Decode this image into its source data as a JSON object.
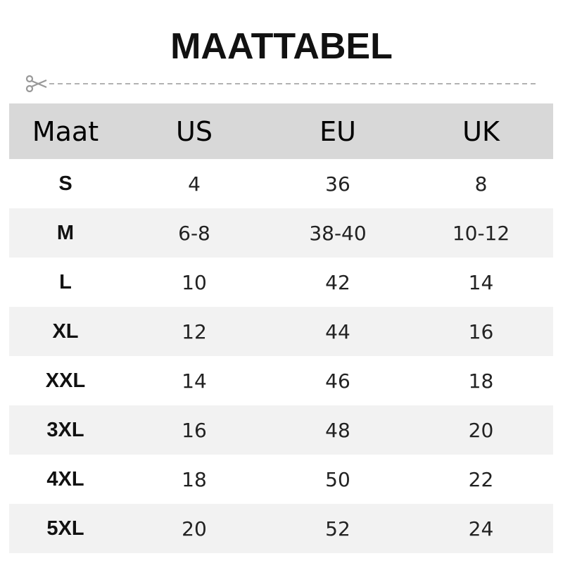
{
  "title": "MAATTABEL",
  "cut_icon": "scissors-icon",
  "colors": {
    "header_bg": "#d8d8d8",
    "alt_row_bg": "#f2f2f2",
    "cutline": "#999999"
  },
  "table": {
    "headers": [
      "Maat",
      "US",
      "EU",
      "UK"
    ],
    "rows": [
      [
        "S",
        "4",
        "36",
        "8"
      ],
      [
        "M",
        "6-8",
        "38-40",
        "10-12"
      ],
      [
        "L",
        "10",
        "42",
        "14"
      ],
      [
        "XL",
        "12",
        "44",
        "16"
      ],
      [
        "XXL",
        "14",
        "46",
        "18"
      ],
      [
        "3XL",
        "16",
        "48",
        "20"
      ],
      [
        "4XL",
        "18",
        "50",
        "22"
      ],
      [
        "5XL",
        "20",
        "52",
        "24"
      ]
    ]
  }
}
